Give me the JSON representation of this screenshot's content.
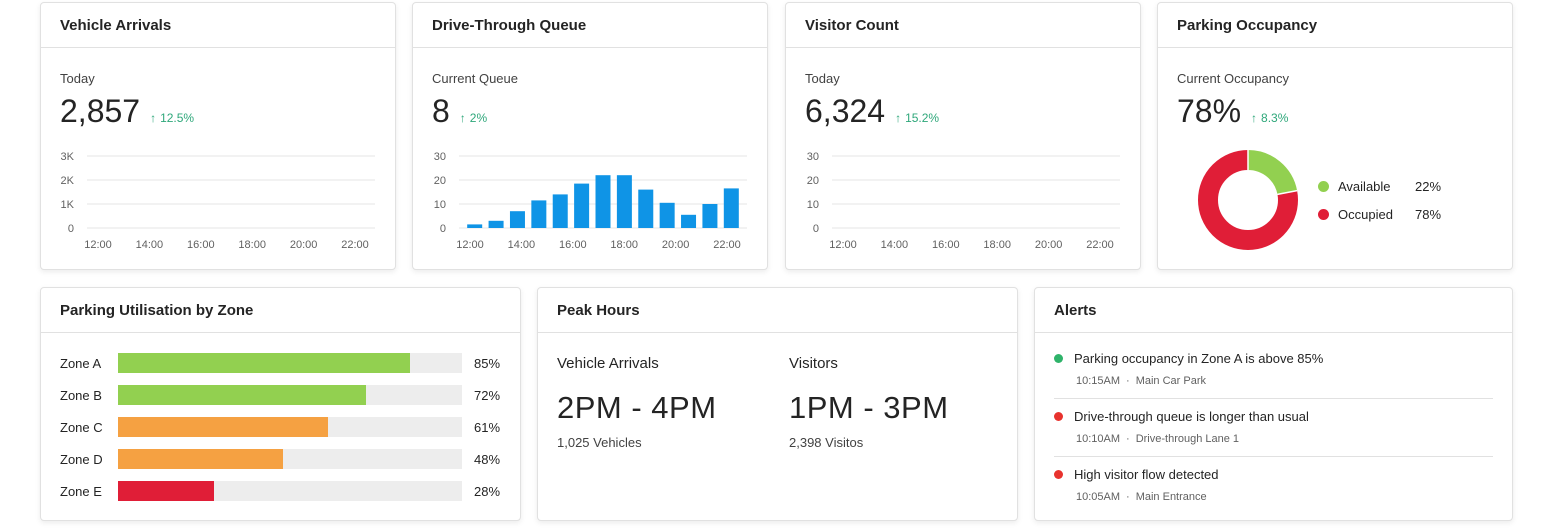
{
  "vehicle_arrivals": {
    "title": "Vehicle Arrivals",
    "sub_label": "Today",
    "value": "2,857",
    "change": "12.5%"
  },
  "drive_through": {
    "title": "Drive-Through Queue",
    "sub_label": "Current Queue",
    "value": "8",
    "change": "2%"
  },
  "visitor_count": {
    "title": "Visitor Count",
    "sub_label": "Today",
    "value": "6,324",
    "change": "15.2%"
  },
  "parking_occupancy": {
    "title": "Parking Occupancy",
    "sub_label": "Current Occupancy",
    "value": "78%",
    "change": "8.3%",
    "legend": [
      {
        "label": "Available",
        "pct": "22%",
        "color": "#92d050"
      },
      {
        "label": "Occupied",
        "pct": "78%",
        "color": "#e01e37"
      }
    ]
  },
  "arrow_glyph": "↑",
  "chart_data": [
    {
      "type": "line",
      "chart": "vehicle_arrivals",
      "x_ticks": [
        "12:00",
        "14:00",
        "16:00",
        "18:00",
        "20:00",
        "22:00"
      ],
      "y_ticks": [
        "0",
        "1K",
        "2K",
        "3K"
      ],
      "ylim": [
        0,
        3000
      ],
      "series": [],
      "grid": true
    },
    {
      "type": "bar",
      "chart": "drive_through_queue",
      "x_ticks": [
        "12:00",
        "14:00",
        "16:00",
        "18:00",
        "20:00",
        "22:00"
      ],
      "y_ticks": [
        "0",
        "10",
        "20",
        "30"
      ],
      "ylim": [
        0,
        30
      ],
      "values": [
        1.5,
        3,
        7,
        11.5,
        14,
        18.5,
        22,
        22,
        16,
        10.5,
        5.5,
        10,
        16.5
      ],
      "color": "#0f94e6",
      "grid": true
    },
    {
      "type": "line",
      "chart": "visitor_count",
      "x_ticks": [
        "12:00",
        "14:00",
        "16:00",
        "18:00",
        "20:00",
        "22:00"
      ],
      "y_ticks": [
        "0",
        "10",
        "20",
        "30"
      ],
      "ylim": [
        0,
        30
      ],
      "series": [],
      "grid": true
    },
    {
      "type": "pie",
      "chart": "parking_occupancy",
      "slices": [
        {
          "label": "Available",
          "value": 22,
          "color": "#92d050"
        },
        {
          "label": "Occupied",
          "value": 78,
          "color": "#e01e37"
        }
      ]
    }
  ],
  "zones": {
    "title": "Parking Utilisation by Zone",
    "items": [
      {
        "label": "Zone A",
        "value": 85,
        "pct": "85%",
        "color": "#92d050"
      },
      {
        "label": "Zone B",
        "value": 72,
        "pct": "72%",
        "color": "#92d050"
      },
      {
        "label": "Zone C",
        "value": 61,
        "pct": "61%",
        "color": "#f5a142"
      },
      {
        "label": "Zone D",
        "value": 48,
        "pct": "48%",
        "color": "#f5a142"
      },
      {
        "label": "Zone E",
        "value": 28,
        "pct": "28%",
        "color": "#e01e37"
      }
    ]
  },
  "peak_hours": {
    "title": "Peak Hours",
    "vehicle": {
      "title": "Vehicle Arrivals",
      "value": "2PM - 4PM",
      "sub": "1,025 Vehicles"
    },
    "visitors": {
      "title": "Visitors",
      "value": "1PM - 3PM",
      "sub": "2,398 Visitos"
    }
  },
  "alerts": {
    "title": "Alerts",
    "separator": "·",
    "items": [
      {
        "text": "Parking occupancy in Zone A is above 85%",
        "time": "10:15AM",
        "location": "Main Car Park",
        "color": "#2fb36a"
      },
      {
        "text": "Drive-through queue is longer than usual",
        "time": "10:10AM",
        "location": "Drive-through Lane 1",
        "color": "#e8332e"
      },
      {
        "text": "High visitor flow detected",
        "time": "10:05AM",
        "location": "Main Entrance",
        "color": "#e8332e"
      }
    ]
  }
}
